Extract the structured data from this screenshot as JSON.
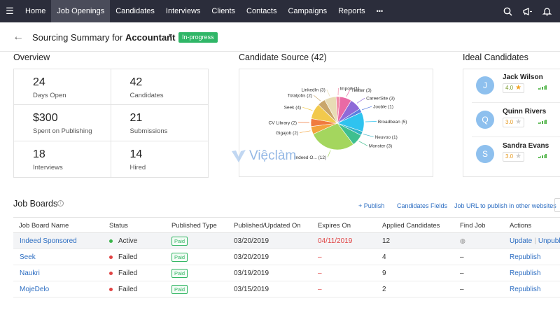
{
  "nav": {
    "items": [
      "Home",
      "Job Openings",
      "Candidates",
      "Interviews",
      "Clients",
      "Contacts",
      "Campaigns",
      "Reports"
    ],
    "active_index": 1,
    "more": "•••"
  },
  "header": {
    "back": "←",
    "title_prefix": "Sourcing Summary for ",
    "title_job": "Accountant",
    "caret": "▾",
    "status": "In-progress"
  },
  "overview": {
    "title": "Overview",
    "stats": [
      {
        "value": "24",
        "label": "Days Open"
      },
      {
        "value": "42",
        "label": "Candidates"
      },
      {
        "value": "$300",
        "label": "Spent on Publishing"
      },
      {
        "value": "21",
        "label": "Submissions"
      },
      {
        "value": "18",
        "label": "Interviews"
      },
      {
        "value": "14",
        "label": "Hired"
      }
    ]
  },
  "candidate_source": {
    "title": "Candidate Source (42)"
  },
  "chart_data": {
    "type": "pie",
    "title": "Candidate Source (42)",
    "slices": [
      {
        "label": "Import (1)",
        "value": 1,
        "color": "#f28ca7"
      },
      {
        "label": "Twitter (3)",
        "value": 3,
        "color": "#e96aa5"
      },
      {
        "label": "CareerSite (3)",
        "value": 3,
        "color": "#8f6ad8"
      },
      {
        "label": "Jooble (1)",
        "value": 1,
        "color": "#5b7fe0"
      },
      {
        "label": "Broadbean (5)",
        "value": 5,
        "color": "#2fc3ef"
      },
      {
        "label": "Neuvoo (1)",
        "value": 1,
        "color": "#33b3c4"
      },
      {
        "label": "Monster (3)",
        "value": 3,
        "color": "#3fbf8f"
      },
      {
        "label": "Indeed O... (12)",
        "value": 12,
        "color": "#a4d65e"
      },
      {
        "label": "Gigajob (2)",
        "value": 2,
        "color": "#f3a33c"
      },
      {
        "label": "CV Library (2)",
        "value": 2,
        "color": "#f07b3f"
      },
      {
        "label": "Seek (4)",
        "value": 4,
        "color": "#f2c94c"
      },
      {
        "label": "Totaljobs (2)",
        "value": 2,
        "color": "#c9a66b"
      },
      {
        "label": "LinkedIn (3)",
        "value": 3,
        "color": "#e8dcb5"
      }
    ]
  },
  "ideal": {
    "title": "Ideal Candidates",
    "candidates": [
      {
        "initial": "J",
        "name": "Jack Wilson",
        "rating": "4.0",
        "star": "★",
        "level": "high"
      },
      {
        "initial": "Q",
        "name": "Quinn Rivers",
        "rating": "3.0",
        "star": "★",
        "level": "low"
      },
      {
        "initial": "S",
        "name": "Sandra Evans",
        "rating": "3.0",
        "star": "★",
        "level": "low"
      }
    ]
  },
  "job_boards": {
    "title": "Job Boards",
    "info": "i",
    "links": [
      "+ Publish",
      "Candidates Fields",
      "Job URL to publish in other websites"
    ],
    "columns": [
      "Job Board Name",
      "Status",
      "Published Type",
      "Published/Updated On",
      "Expires On",
      "Applied Candidates",
      "Find Job",
      "Actions"
    ],
    "rows": [
      {
        "name": "Indeed Sponsored",
        "status": "Active",
        "status_color": "#3ab44a",
        "type": "Paid",
        "updated": "03/20/2019",
        "expires": "04/11/2019",
        "applied": "12",
        "find": "◍",
        "action": "Update",
        "action2": "Unpubl"
      },
      {
        "name": "Seek",
        "status": "Failed",
        "status_color": "#e04343",
        "type": "Paid",
        "updated": "03/20/2019",
        "expires": "–",
        "applied": "4",
        "find": "–",
        "action": "Republish",
        "action2": ""
      },
      {
        "name": "Naukri",
        "status": "Failed",
        "status_color": "#e04343",
        "type": "Paid",
        "updated": "03/19/2019",
        "expires": "–",
        "applied": "9",
        "find": "–",
        "action": "Republish",
        "action2": ""
      },
      {
        "name": "MojeDelo",
        "status": "Failed",
        "status_color": "#e04343",
        "type": "Paid",
        "updated": "03/15/2019",
        "expires": "–",
        "applied": "2",
        "find": "–",
        "action": "Republish",
        "action2": ""
      }
    ]
  },
  "watermark": "Việclàm"
}
